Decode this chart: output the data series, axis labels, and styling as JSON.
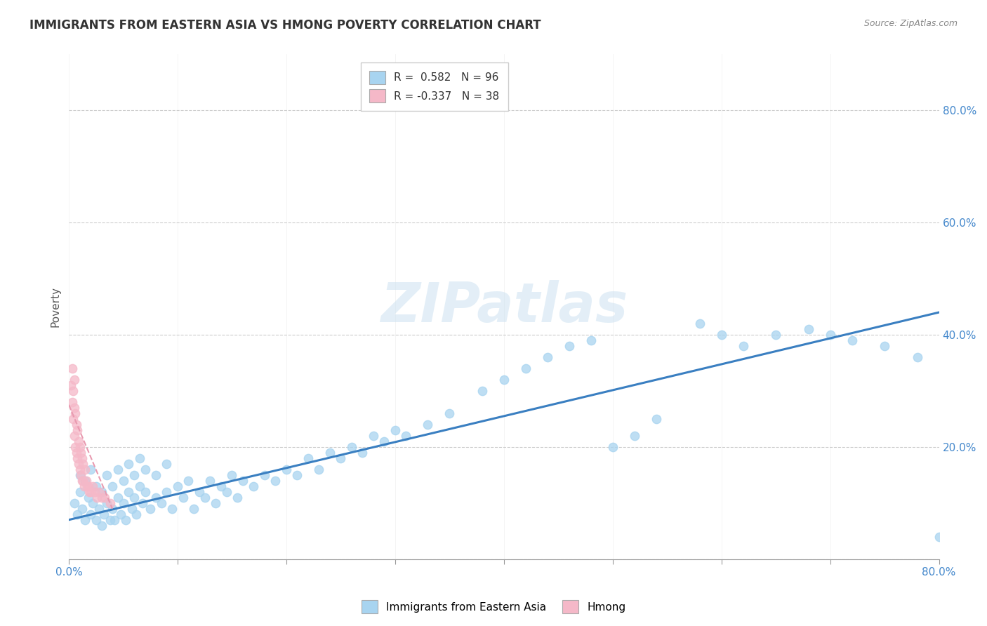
{
  "title": "IMMIGRANTS FROM EASTERN ASIA VS HMONG POVERTY CORRELATION CHART",
  "source_text": "Source: ZipAtlas.com",
  "ylabel": "Poverty",
  "xlim": [
    0,
    0.8
  ],
  "ylim": [
    0,
    0.9
  ],
  "yticks": [
    0.0,
    0.2,
    0.4,
    0.6,
    0.8
  ],
  "xticks": [
    0.0,
    0.1,
    0.2,
    0.3,
    0.4,
    0.5,
    0.6,
    0.7,
    0.8
  ],
  "xtick_labels_show": [
    "0.0%",
    "",
    "",
    "",
    "",
    "",
    "",
    "",
    "80.0%"
  ],
  "ytick_labels": [
    "",
    "20.0%",
    "40.0%",
    "60.0%",
    "80.0%"
  ],
  "blue_color": "#A8D4F0",
  "pink_color": "#F5B8C8",
  "line_blue": "#3A7FC1",
  "line_pink_color": "#E89AB0",
  "legend_R_blue": "0.582",
  "legend_N_blue": "96",
  "legend_R_pink": "-0.337",
  "legend_N_pink": "38",
  "watermark": "ZIPatlas",
  "blue_scatter_x": [
    0.005,
    0.008,
    0.01,
    0.01,
    0.012,
    0.015,
    0.015,
    0.018,
    0.02,
    0.02,
    0.022,
    0.025,
    0.025,
    0.028,
    0.03,
    0.03,
    0.032,
    0.035,
    0.035,
    0.038,
    0.04,
    0.04,
    0.042,
    0.045,
    0.045,
    0.048,
    0.05,
    0.05,
    0.052,
    0.055,
    0.055,
    0.058,
    0.06,
    0.06,
    0.062,
    0.065,
    0.065,
    0.068,
    0.07,
    0.07,
    0.075,
    0.08,
    0.08,
    0.085,
    0.09,
    0.09,
    0.095,
    0.1,
    0.105,
    0.11,
    0.115,
    0.12,
    0.125,
    0.13,
    0.135,
    0.14,
    0.145,
    0.15,
    0.155,
    0.16,
    0.17,
    0.18,
    0.19,
    0.2,
    0.21,
    0.22,
    0.23,
    0.24,
    0.25,
    0.26,
    0.27,
    0.28,
    0.29,
    0.3,
    0.31,
    0.33,
    0.35,
    0.38,
    0.4,
    0.42,
    0.44,
    0.46,
    0.48,
    0.5,
    0.52,
    0.54,
    0.58,
    0.6,
    0.62,
    0.65,
    0.68,
    0.7,
    0.72,
    0.75,
    0.78,
    0.8
  ],
  "blue_scatter_y": [
    0.1,
    0.08,
    0.12,
    0.15,
    0.09,
    0.07,
    0.14,
    0.11,
    0.08,
    0.16,
    0.1,
    0.07,
    0.13,
    0.09,
    0.06,
    0.12,
    0.08,
    0.1,
    0.15,
    0.07,
    0.09,
    0.13,
    0.07,
    0.11,
    0.16,
    0.08,
    0.1,
    0.14,
    0.07,
    0.12,
    0.17,
    0.09,
    0.11,
    0.15,
    0.08,
    0.13,
    0.18,
    0.1,
    0.12,
    0.16,
    0.09,
    0.11,
    0.15,
    0.1,
    0.12,
    0.17,
    0.09,
    0.13,
    0.11,
    0.14,
    0.09,
    0.12,
    0.11,
    0.14,
    0.1,
    0.13,
    0.12,
    0.15,
    0.11,
    0.14,
    0.13,
    0.15,
    0.14,
    0.16,
    0.15,
    0.18,
    0.16,
    0.19,
    0.18,
    0.2,
    0.19,
    0.22,
    0.21,
    0.23,
    0.22,
    0.24,
    0.26,
    0.3,
    0.32,
    0.34,
    0.36,
    0.38,
    0.39,
    0.2,
    0.22,
    0.25,
    0.42,
    0.4,
    0.38,
    0.4,
    0.41,
    0.4,
    0.39,
    0.38,
    0.36,
    0.04
  ],
  "pink_scatter_x": [
    0.002,
    0.003,
    0.003,
    0.004,
    0.004,
    0.005,
    0.005,
    0.005,
    0.006,
    0.006,
    0.007,
    0.007,
    0.008,
    0.008,
    0.009,
    0.009,
    0.01,
    0.01,
    0.011,
    0.011,
    0.012,
    0.012,
    0.013,
    0.013,
    0.014,
    0.015,
    0.016,
    0.017,
    0.018,
    0.019,
    0.02,
    0.022,
    0.024,
    0.026,
    0.028,
    0.03,
    0.033,
    0.038
  ],
  "pink_scatter_y": [
    0.31,
    0.28,
    0.34,
    0.25,
    0.3,
    0.22,
    0.27,
    0.32,
    0.2,
    0.26,
    0.19,
    0.24,
    0.18,
    0.23,
    0.17,
    0.21,
    0.16,
    0.2,
    0.15,
    0.19,
    0.14,
    0.18,
    0.14,
    0.17,
    0.13,
    0.16,
    0.14,
    0.13,
    0.13,
    0.12,
    0.12,
    0.13,
    0.12,
    0.11,
    0.12,
    0.11,
    0.11,
    0.1
  ],
  "blue_line_x": [
    0.0,
    0.8
  ],
  "blue_line_y": [
    0.07,
    0.44
  ],
  "pink_line_x": [
    0.0,
    0.04
  ],
  "pink_line_y": [
    0.275,
    0.09
  ]
}
